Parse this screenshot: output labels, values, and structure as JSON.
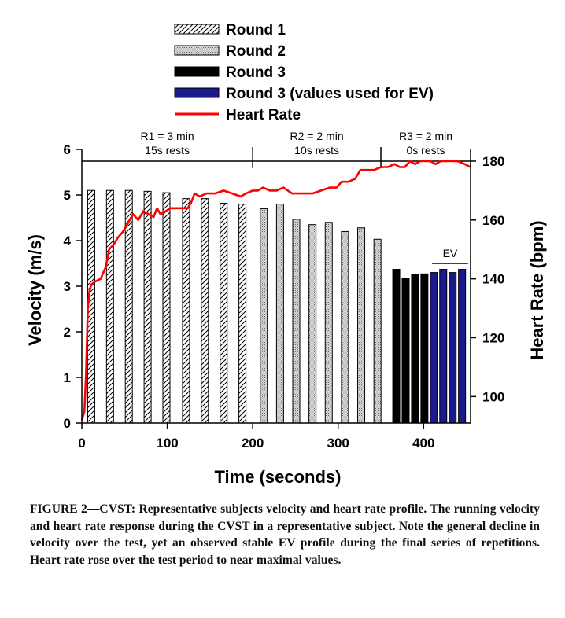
{
  "chart_data": {
    "type": "bar",
    "xlabel": "Time (seconds)",
    "ylabel": "Velocity (m/s)",
    "y2label": "Heart Rate (bpm)",
    "xlim": [
      0,
      455
    ],
    "ylim": [
      0,
      6
    ],
    "y2lim": [
      91,
      184
    ],
    "x_ticks": [
      0,
      100,
      200,
      300,
      400
    ],
    "y_ticks": [
      0,
      1,
      2,
      3,
      4,
      5,
      6
    ],
    "y2_ticks": [
      100,
      120,
      140,
      160,
      180
    ],
    "legend": {
      "position": "top",
      "entries": [
        {
          "label": "Round 1",
          "pattern": "diagonal-hatch"
        },
        {
          "label": "Round 2",
          "pattern": "gray-stipple"
        },
        {
          "label": "Round 3",
          "pattern": "solid-black"
        },
        {
          "label": "Round 3 (values used for EV)",
          "pattern": "solid-blue"
        },
        {
          "label": "Heart Rate",
          "pattern": "red-line"
        }
      ]
    },
    "phases": [
      {
        "label": "R1 = 3 min",
        "sub": "15s rests",
        "start": 0,
        "end": 200
      },
      {
        "label": "R2 = 2 min",
        "sub": "10s rests",
        "start": 200,
        "end": 350
      },
      {
        "label": "R3 = 2 min",
        "sub": "0s rests",
        "start": 350,
        "end": 455
      }
    ],
    "ev_annotation": {
      "label": "EV",
      "start": 410,
      "end": 452
    },
    "series": [
      {
        "name": "Round 1",
        "style": "diagonal-hatch",
        "x": [
          11,
          33,
          55,
          77,
          99,
          122,
          144,
          166,
          188
        ],
        "values": [
          5.1,
          5.1,
          5.1,
          5.08,
          5.05,
          4.92,
          4.92,
          4.82,
          4.8
        ]
      },
      {
        "name": "Round 2",
        "style": "gray-stipple",
        "x": [
          213,
          232,
          251,
          270,
          289,
          308,
          327,
          346
        ],
        "values": [
          4.7,
          4.8,
          4.47,
          4.35,
          4.4,
          4.2,
          4.28,
          4.03
        ]
      },
      {
        "name": "Round 3",
        "style": "solid-black",
        "x": [
          368,
          379,
          390,
          401
        ],
        "values": [
          3.37,
          3.17,
          3.25,
          3.27
        ]
      },
      {
        "name": "Round 3 (values used for EV)",
        "style": "solid-blue",
        "x": [
          412,
          423,
          434,
          445
        ],
        "values": [
          3.3,
          3.37,
          3.3,
          3.37
        ]
      }
    ],
    "heart_rate": {
      "name": "Heart Rate",
      "color": "#ff0000",
      "points": [
        [
          0,
          92
        ],
        [
          3,
          95
        ],
        [
          5,
          108
        ],
        [
          7,
          130
        ],
        [
          9,
          136
        ],
        [
          11,
          138
        ],
        [
          15,
          139
        ],
        [
          22,
          140
        ],
        [
          28,
          144
        ],
        [
          32,
          150
        ],
        [
          38,
          152
        ],
        [
          42,
          154
        ],
        [
          48,
          156
        ],
        [
          52,
          158
        ],
        [
          56,
          160
        ],
        [
          60,
          162
        ],
        [
          66,
          160
        ],
        [
          72,
          163
        ],
        [
          78,
          162
        ],
        [
          84,
          161
        ],
        [
          88,
          164
        ],
        [
          92,
          162
        ],
        [
          98,
          163
        ],
        [
          104,
          164
        ],
        [
          110,
          164
        ],
        [
          118,
          164
        ],
        [
          124,
          164
        ],
        [
          128,
          166
        ],
        [
          132,
          169
        ],
        [
          138,
          168
        ],
        [
          146,
          169
        ],
        [
          156,
          169
        ],
        [
          166,
          170
        ],
        [
          176,
          169
        ],
        [
          186,
          168
        ],
        [
          192,
          169
        ],
        [
          200,
          170
        ],
        [
          206,
          170
        ],
        [
          212,
          171
        ],
        [
          220,
          170
        ],
        [
          228,
          170
        ],
        [
          236,
          171
        ],
        [
          246,
          169
        ],
        [
          256,
          169
        ],
        [
          270,
          169
        ],
        [
          280,
          170
        ],
        [
          290,
          171
        ],
        [
          298,
          171
        ],
        [
          304,
          173
        ],
        [
          312,
          173
        ],
        [
          320,
          174
        ],
        [
          326,
          177
        ],
        [
          334,
          177
        ],
        [
          342,
          177
        ],
        [
          350,
          178
        ],
        [
          358,
          178
        ],
        [
          366,
          179
        ],
        [
          372,
          178
        ],
        [
          378,
          178
        ],
        [
          384,
          180
        ],
        [
          390,
          179
        ],
        [
          396,
          180
        ],
        [
          402,
          180
        ],
        [
          408,
          180
        ],
        [
          414,
          179
        ],
        [
          420,
          180
        ],
        [
          430,
          180
        ],
        [
          440,
          180
        ],
        [
          448,
          179
        ],
        [
          455,
          178
        ]
      ]
    }
  },
  "caption": {
    "lead": "FIGURE 2—CVST: Representative subjects velocity and heart rate profile.",
    "body": "The running velocity and heart rate response during the CVST in a representative subject. Note the general decline in velocity over the test, yet an observed stable EV profile during the final series of repetitions. Heart rate rose over the test period to near maximal values."
  },
  "colors": {
    "heart_rate": "#ff0000",
    "ev_bars": "#1a1a8c",
    "round3_bars": "#000000"
  }
}
